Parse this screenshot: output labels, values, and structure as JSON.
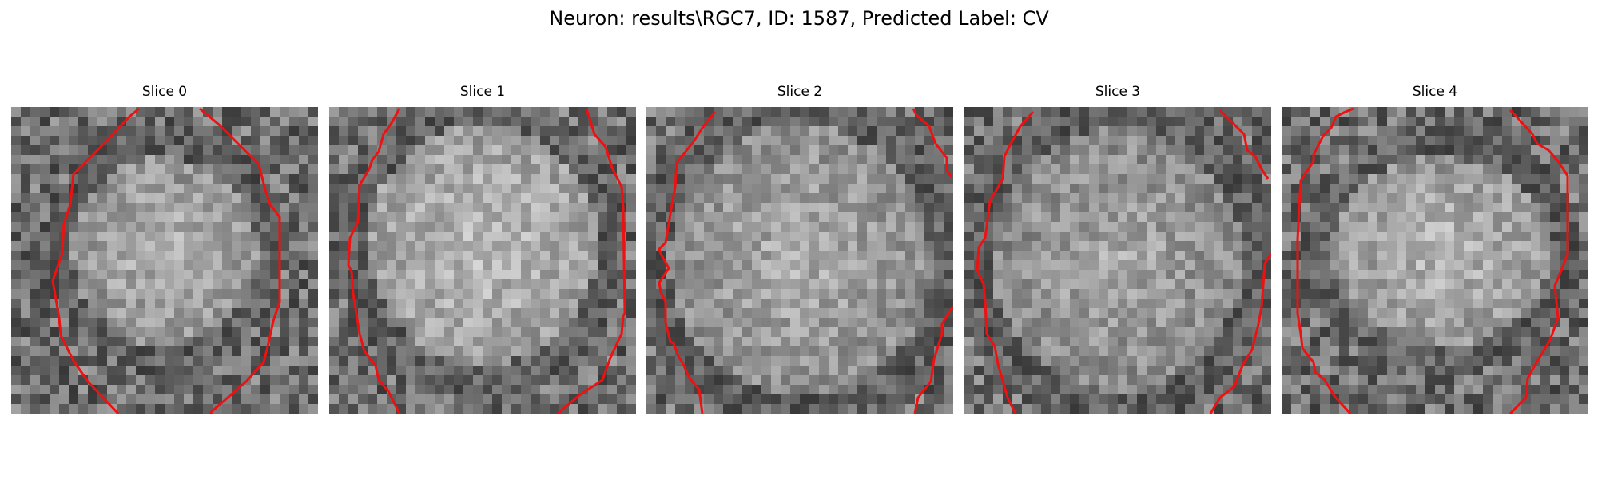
{
  "title": "Neuron: results\\RGC7, ID: 1587, Predicted Label: CV",
  "contour_color": "#ee1111",
  "slices": [
    {
      "label": "Slice 0"
    },
    {
      "label": "Slice 1"
    },
    {
      "label": "Slice 2"
    },
    {
      "label": "Slice 3"
    },
    {
      "label": "Slice 4"
    }
  ]
}
